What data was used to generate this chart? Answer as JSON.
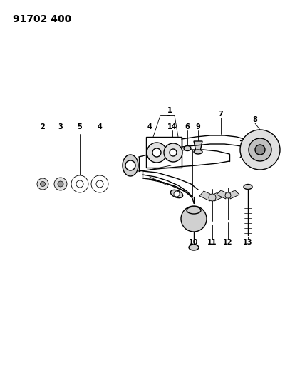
{
  "title": "91702 400",
  "bg_color": "#ffffff",
  "line_color": "#000000",
  "fig_width": 4.0,
  "fig_height": 5.33,
  "dpi": 100,
  "title_fontsize": 10,
  "label_fontsize": 7,
  "label_fontweight": "bold"
}
